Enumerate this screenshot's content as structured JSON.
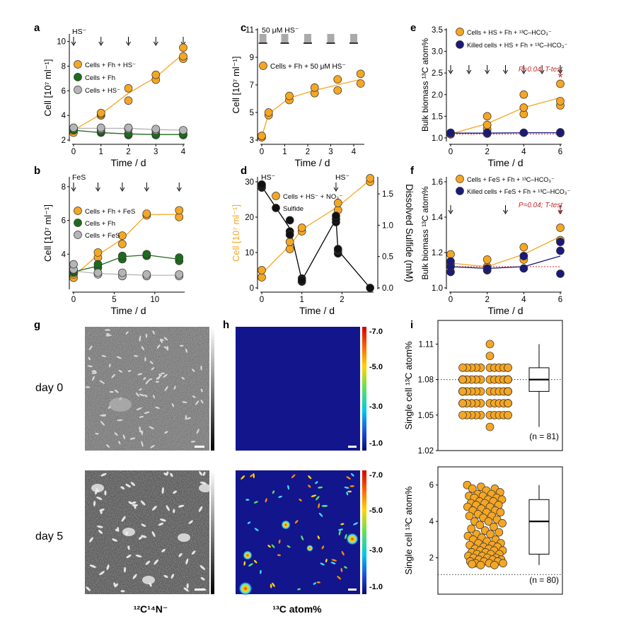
{
  "colors": {
    "orange": "#F5A623",
    "green": "#1E6B1E",
    "gray": "#B5B5B5",
    "navy": "#1A1A7A",
    "black": "#111111",
    "red": "#C62828",
    "dark_blue_bg": "#12158C"
  },
  "chart_data": [
    {
      "panel": "a",
      "type": "scatter",
      "xlabel": "Time / d",
      "ylabel": "Cell [10⁷ ml⁻¹]",
      "xlim": [
        0,
        4
      ],
      "ylim": [
        2,
        10.5
      ],
      "xticks": [
        0,
        1,
        2,
        3,
        4
      ],
      "yticks": [
        2,
        4,
        6,
        8,
        10
      ],
      "arrows_at": [
        0,
        1,
        2,
        3,
        4
      ],
      "arrow_label": "HS⁻",
      "series": [
        {
          "name": "Cells + Fh + HS⁻",
          "color": "#F5A623",
          "x": [
            0,
            0,
            0,
            1,
            1,
            1,
            2,
            2,
            3,
            3,
            4,
            4,
            4
          ],
          "y": [
            2.6,
            2.8,
            2.9,
            4.0,
            4.1,
            4.2,
            5.2,
            6.2,
            6.9,
            7.3,
            8.6,
            8.8,
            9.5
          ],
          "line_x": [
            0,
            1,
            2,
            3,
            4
          ],
          "line_y": [
            2.8,
            4.1,
            5.8,
            7.1,
            9.0
          ]
        },
        {
          "name": "Cells + Fh",
          "color": "#1E6B1E",
          "x": [
            0,
            1,
            1,
            2,
            2,
            3,
            3,
            4,
            4
          ],
          "y": [
            2.8,
            2.6,
            2.7,
            2.4,
            2.5,
            2.4,
            2.5,
            2.4,
            2.5
          ],
          "line_x": [
            0,
            1,
            2,
            3,
            4
          ],
          "line_y": [
            2.8,
            2.6,
            2.5,
            2.45,
            2.45
          ]
        },
        {
          "name": "Cells + HS⁻",
          "color": "#B5B5B5",
          "x": [
            0,
            1,
            1,
            2,
            2,
            3,
            3,
            4
          ],
          "y": [
            3.0,
            2.9,
            3.0,
            2.9,
            3.0,
            2.8,
            2.9,
            2.8
          ],
          "line_x": [
            0,
            1,
            2,
            3,
            4
          ],
          "line_y": [
            2.95,
            2.95,
            2.95,
            2.85,
            2.8
          ]
        }
      ]
    },
    {
      "panel": "b",
      "type": "scatter",
      "xlabel": "Time / d",
      "ylabel": "Cell [10⁷ ml⁻¹]",
      "xlim": [
        0,
        13.5
      ],
      "ylim": [
        2,
        8.5
      ],
      "xticks": [
        0,
        5,
        10
      ],
      "yticks": [
        4,
        6,
        8
      ],
      "arrows_at": [
        0,
        3,
        6,
        9,
        13
      ],
      "arrow_label": "FeS",
      "series": [
        {
          "name": "Cells + Fh + FeS",
          "color": "#F5A623",
          "x": [
            0,
            0,
            3,
            3,
            6,
            6,
            9,
            9,
            13,
            13
          ],
          "y": [
            2.6,
            2.8,
            3.8,
            4.1,
            4.6,
            5.1,
            6.3,
            6.4,
            6.2,
            6.6
          ],
          "line_x": [
            0,
            3,
            6,
            9,
            13
          ],
          "line_y": [
            2.7,
            3.95,
            4.9,
            6.35,
            6.35
          ]
        },
        {
          "name": "Cells + Fh",
          "color": "#1E6B1E",
          "x": [
            0,
            0,
            3,
            3,
            6,
            6,
            9,
            9,
            13,
            13
          ],
          "y": [
            2.9,
            3.0,
            3.2,
            3.4,
            3.7,
            3.9,
            3.9,
            4.0,
            3.6,
            3.8
          ],
          "line_x": [
            0,
            3,
            6,
            9,
            13
          ],
          "line_y": [
            2.95,
            3.3,
            3.85,
            3.95,
            3.7
          ]
        },
        {
          "name": "Cells + FeS",
          "color": "#B5B5B5",
          "x": [
            0,
            0,
            3,
            3,
            6,
            6,
            9,
            9,
            13,
            13
          ],
          "y": [
            3.1,
            3.4,
            2.8,
            2.9,
            2.7,
            2.9,
            2.7,
            2.8,
            2.7,
            2.8
          ],
          "line_x": [
            0,
            3,
            6,
            9,
            13
          ],
          "line_y": [
            3.0,
            2.85,
            2.8,
            2.75,
            2.75
          ]
        }
      ]
    },
    {
      "panel": "c",
      "type": "scatter",
      "xlabel": "Time / d",
      "ylabel": "Cell [10⁷ ml⁻¹]",
      "xlim": [
        0,
        4.4
      ],
      "ylim": [
        3,
        11
      ],
      "xticks": [
        0,
        1,
        2,
        3,
        4
      ],
      "yticks": [
        3,
        5,
        7,
        9,
        11
      ],
      "pulse_label": "50 μM HS⁻",
      "pulse_at": [
        0.05,
        1.0,
        2.0,
        3.0,
        4.0
      ],
      "series": [
        {
          "name": "Cells + Fh + 50 μM HS⁻",
          "color": "#F5A623",
          "x": [
            0,
            0,
            0.3,
            0.3,
            1.2,
            1.2,
            2.3,
            2.3,
            3.3,
            3.3,
            4.3,
            4.3
          ],
          "y": [
            3.2,
            3.3,
            4.8,
            5.0,
            5.9,
            6.2,
            6.4,
            6.8,
            6.6,
            7.4,
            7.1,
            7.8
          ],
          "line_x": [
            0,
            0.3,
            1.2,
            2.3,
            3.3,
            4.3
          ],
          "line_y": [
            3.25,
            4.9,
            6.05,
            6.6,
            7.0,
            7.4
          ]
        }
      ]
    },
    {
      "panel": "d",
      "type": "scatter",
      "xlabel": "Time / d",
      "ylabel": "Cell [10⁷ ml⁻¹]",
      "ylabel_right": "Dissolved Sulfide (mM)",
      "xlim": [
        0,
        2.75
      ],
      "ylim": [
        0,
        31
      ],
      "ylim_right": [
        0,
        1.75
      ],
      "xticks": [
        0,
        1,
        2
      ],
      "yticks": [
        0,
        10,
        20,
        30
      ],
      "yticks_right": [
        0.0,
        0.5,
        1.0,
        1.5
      ],
      "arrows_at": [
        0,
        1.85
      ],
      "arrow_label": "HS⁻",
      "series": [
        {
          "name": "Cells + HS⁻ + NO₃⁻",
          "color": "#F5A623",
          "axis": "left",
          "x": [
            0,
            0,
            0.7,
            0.7,
            1.0,
            1.0,
            1.9,
            1.9,
            2.7,
            2.7
          ],
          "y": [
            3,
            5,
            11,
            13,
            16,
            17,
            22,
            24,
            30,
            31
          ],
          "line_x": [
            0,
            0.7,
            1.0,
            1.9,
            2.7
          ],
          "line_y": [
            4,
            12,
            16.5,
            23,
            30.5
          ]
        },
        {
          "name": "Sulfide",
          "color": "#111111",
          "axis": "right",
          "x": [
            0,
            0,
            0,
            0.7,
            0.7,
            0.7,
            1.0,
            1.0,
            1.0,
            1.85,
            1.85,
            1.85,
            1.9,
            1.9,
            1.9,
            2.7
          ],
          "y": [
            1.6,
            1.62,
            1.65,
            1.08,
            0.9,
            0.85,
            0.1,
            0.15,
            0.12,
            1.05,
            1.1,
            1.15,
            0.55,
            0.6,
            0.62,
            0.0
          ],
          "line_x": [
            0,
            0.7,
            1.0,
            1.85,
            1.9,
            2.7
          ],
          "line_y": [
            1.62,
            0.95,
            0.12,
            1.1,
            0.6,
            0.0
          ]
        }
      ]
    },
    {
      "panel": "e",
      "type": "scatter",
      "xlabel": "Time / d",
      "ylabel": "Bulk biomass ¹³C atom%",
      "xlim": [
        0,
        6
      ],
      "ylim": [
        0.95,
        3.5
      ],
      "xticks": [
        0,
        2,
        4,
        6
      ],
      "yticks": [
        1.0,
        1.5,
        2.0,
        2.5,
        3.0,
        3.5
      ],
      "arrows_at": [
        0,
        1,
        2,
        3,
        4,
        5,
        6
      ],
      "annotation": "P=0.04; T-test",
      "significance": "*",
      "series": [
        {
          "name": "Cells + HS + Fh + ¹³C–HCO₃⁻",
          "color": "#F5A623",
          "x": [
            0,
            0,
            2,
            2,
            2,
            4,
            4,
            4,
            6,
            6,
            6
          ],
          "y": [
            1.08,
            1.1,
            1.2,
            1.3,
            1.5,
            1.55,
            1.7,
            2.0,
            1.75,
            1.85,
            2.25
          ],
          "line_x": [
            0,
            2,
            4,
            6
          ],
          "line_y": [
            1.09,
            1.33,
            1.7,
            1.93
          ]
        },
        {
          "name": "Killed cells + HS + Fh + ¹³C–HCO₃⁻",
          "color": "#1A1A7A",
          "x": [
            0,
            0,
            2,
            2,
            4,
            6,
            6
          ],
          "y": [
            1.1,
            1.12,
            1.1,
            1.12,
            1.12,
            1.11,
            1.13
          ],
          "line_x": [
            0,
            2,
            4,
            6
          ],
          "line_y": [
            1.11,
            1.11,
            1.12,
            1.12
          ]
        }
      ]
    },
    {
      "panel": "f",
      "type": "scatter",
      "xlabel": "Time / d",
      "ylabel": "Bulk biomass ¹³C atom%",
      "xlim": [
        0,
        6
      ],
      "ylim": [
        1.0,
        1.62
      ],
      "xticks": [
        0,
        2,
        4,
        6
      ],
      "yticks": [
        1.0,
        1.2,
        1.4,
        1.6
      ],
      "arrows_at": [
        0,
        3,
        6
      ],
      "annotation": "P=0.04; T-test",
      "significance": "*",
      "series": [
        {
          "name": "Cells + FeS + Fh + ¹³C–HCO₃⁻",
          "color": "#F5A623",
          "x": [
            0,
            0,
            2,
            2,
            2,
            4,
            4,
            4,
            6,
            6,
            6
          ],
          "y": [
            1.13,
            1.19,
            1.1,
            1.12,
            1.16,
            1.16,
            1.18,
            1.23,
            1.26,
            1.27,
            1.34
          ],
          "line_x": [
            0,
            2,
            4,
            6
          ],
          "line_y": [
            1.14,
            1.12,
            1.19,
            1.29
          ]
        },
        {
          "name": "Killed cells + FeS + Fh + ¹³C–HCO₃⁻",
          "color": "#1A1A7A",
          "x": [
            0,
            0,
            0,
            2,
            2,
            4,
            4,
            6,
            6,
            6
          ],
          "y": [
            1.09,
            1.12,
            1.15,
            1.1,
            1.11,
            1.11,
            1.18,
            1.08,
            1.21,
            1.26
          ],
          "line_x": [
            0,
            2,
            4,
            6
          ],
          "line_y": [
            1.12,
            1.11,
            1.12,
            1.18
          ]
        }
      ]
    },
    {
      "panel": "i_top",
      "type": "scatter_box",
      "ylabel": "Single cell ¹³C atom%",
      "ylim": [
        1.02,
        1.13
      ],
      "yticks": [
        1.02,
        1.05,
        1.08,
        1.11
      ],
      "reference_line": 1.08,
      "n_label": "(n = 81)",
      "box": {
        "min": 1.04,
        "q1": 1.07,
        "median": 1.08,
        "q3": 1.09,
        "max": 1.11
      },
      "points_y": [
        1.11,
        1.1,
        1.09,
        1.09,
        1.09,
        1.09,
        1.09,
        1.09,
        1.09,
        1.09,
        1.09,
        1.09,
        1.09,
        1.08,
        1.08,
        1.08,
        1.08,
        1.08,
        1.08,
        1.08,
        1.08,
        1.08,
        1.08,
        1.08,
        1.08,
        1.08,
        1.08,
        1.08,
        1.08,
        1.08,
        1.08,
        1.08,
        1.07,
        1.07,
        1.07,
        1.07,
        1.07,
        1.07,
        1.07,
        1.07,
        1.07,
        1.07,
        1.07,
        1.07,
        1.07,
        1.07,
        1.07,
        1.07,
        1.07,
        1.07,
        1.07,
        1.07,
        1.07,
        1.07,
        1.06,
        1.06,
        1.06,
        1.06,
        1.06,
        1.06,
        1.06,
        1.06,
        1.06,
        1.06,
        1.06,
        1.06,
        1.06,
        1.06,
        1.05,
        1.05,
        1.05,
        1.05,
        1.05,
        1.05,
        1.05,
        1.05,
        1.05,
        1.05,
        1.05,
        1.04,
        1.06
      ]
    },
    {
      "panel": "i_bottom",
      "type": "scatter_box",
      "ylabel": "Single cell ¹³C atom%",
      "ylim": [
        0,
        7
      ],
      "yticks": [
        2,
        4,
        6
      ],
      "reference_line": 1.08,
      "n_label": "(n = 80)",
      "box": {
        "min": 1.6,
        "q1": 2.2,
        "median": 4.0,
        "q3": 5.2,
        "max": 6.0
      },
      "points_y": [
        6.0,
        5.9,
        5.8,
        5.8,
        5.7,
        5.6,
        5.5,
        5.5,
        5.4,
        5.4,
        5.3,
        5.3,
        5.2,
        5.2,
        5.1,
        5.1,
        5.0,
        5.0,
        4.9,
        4.9,
        4.8,
        4.8,
        4.7,
        4.6,
        4.6,
        4.5,
        4.5,
        4.4,
        4.3,
        4.3,
        4.2,
        4.1,
        4.0,
        4.0,
        3.9,
        3.8,
        3.7,
        3.6,
        3.5,
        3.4,
        3.3,
        3.3,
        3.2,
        3.1,
        3.0,
        3.0,
        2.9,
        2.8,
        2.8,
        2.7,
        2.7,
        2.6,
        2.6,
        2.5,
        2.5,
        2.4,
        2.4,
        2.4,
        2.3,
        2.3,
        2.2,
        2.2,
        2.2,
        2.1,
        2.1,
        2.0,
        2.0,
        2.0,
        1.9,
        1.9,
        1.9,
        1.8,
        1.8,
        1.8,
        1.7,
        1.7,
        1.7,
        1.6,
        1.6,
        1.65
      ]
    }
  ],
  "panels": {
    "g": {
      "letter": "g",
      "row_labels": [
        "day 0",
        "day 5"
      ],
      "caption": "¹²C¹⁴N⁻",
      "scalebar_ticks": [
        ""
      ]
    },
    "h": {
      "letter": "h",
      "caption": "¹³C atom%",
      "colorbar_ticks": [
        "-7.0",
        "-5.0",
        "-3.0",
        "-1.0"
      ]
    }
  }
}
